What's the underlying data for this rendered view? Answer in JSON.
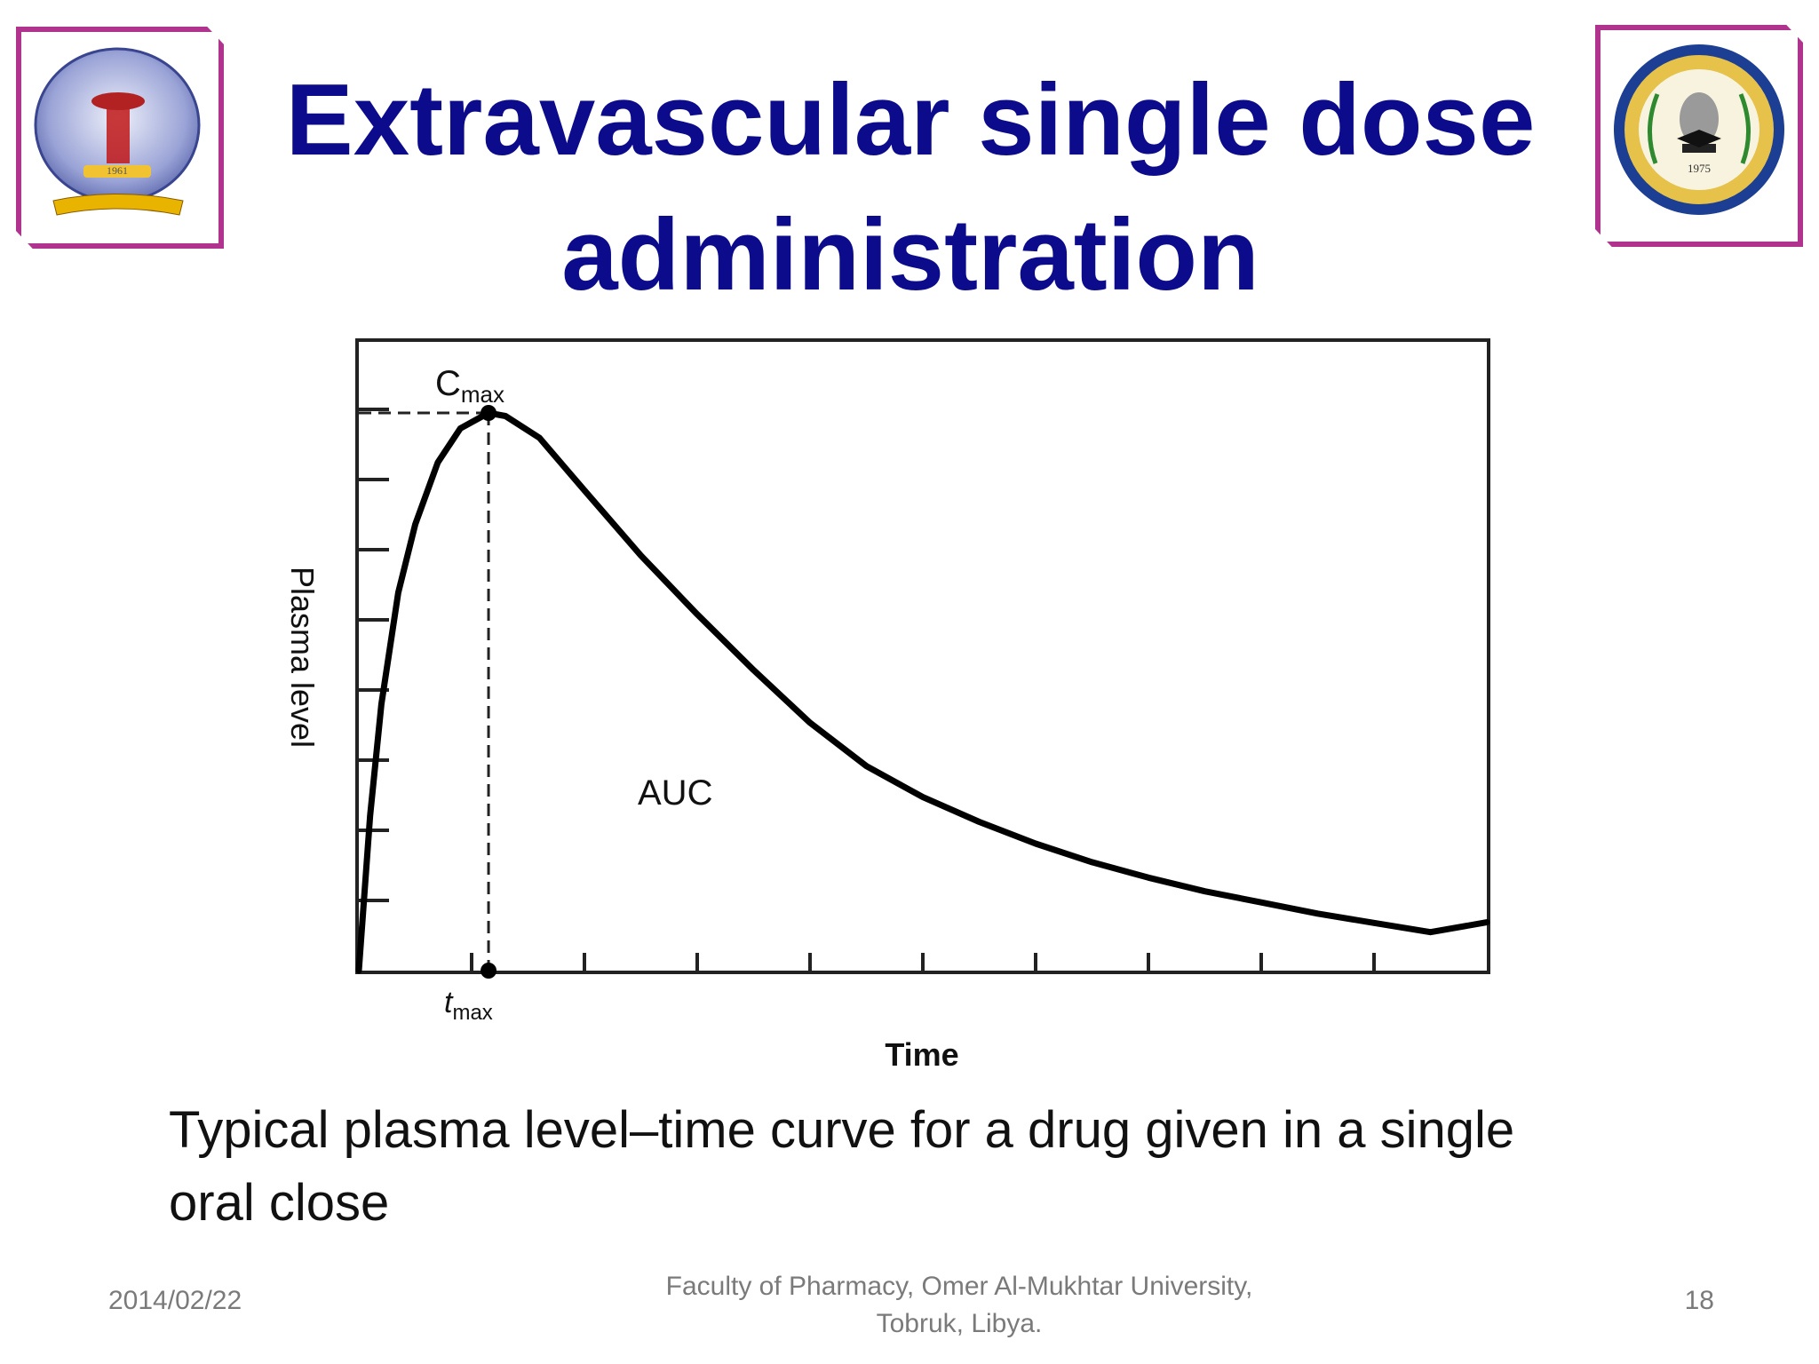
{
  "slide": {
    "title_line1": "Extravascular single dose",
    "title_line2": "administration",
    "caption_line1": "Typical plasma level–time curve for a drug given in a single",
    "caption_line2": "oral close"
  },
  "footer": {
    "date": "2014/02/22",
    "institution_line1": "Faculty of Pharmacy, Omer Al-Mukhtar University,",
    "institution_line2": "Tobruk, Libya.",
    "page_number": "18"
  },
  "logos": {
    "left": {
      "icon": "pharmacy-faculty-logo",
      "year": "1961"
    },
    "right": {
      "icon": "university-seal-logo",
      "year": "1975"
    }
  },
  "colors": {
    "title": "#0b0b8c",
    "logo_frame": "#b0348e",
    "footer_text": "#7a7a7a",
    "curve": "#000000"
  },
  "chart_data": {
    "type": "line",
    "xlabel": "Time",
    "ylabel": "Plasma level",
    "xlim": [
      0,
      10
    ],
    "ylim": [
      0,
      9
    ],
    "x_ticks": 9,
    "y_ticks": 8,
    "grid": false,
    "series": [
      {
        "x": [
          0,
          0.1,
          0.2,
          0.35,
          0.5,
          0.7,
          0.9,
          1.15,
          1.3,
          1.6,
          2.0,
          2.5,
          3.0,
          3.5,
          4.0,
          4.5,
          5.0,
          5.5,
          6.0,
          6.5,
          7.0,
          7.5,
          8.0,
          8.5,
          9.0,
          9.5,
          10.0
        ],
        "y": [
          0,
          2.5,
          4.3,
          6.1,
          7.2,
          8.2,
          8.75,
          9.0,
          8.95,
          8.6,
          7.75,
          6.7,
          5.75,
          4.85,
          4.0,
          3.3,
          2.8,
          2.4,
          2.05,
          1.75,
          1.5,
          1.28,
          1.1,
          0.92,
          0.77,
          0.62,
          0.78
        ]
      }
    ],
    "annotations": {
      "cmax_main": "C",
      "cmax_sub": "max",
      "tmax_main": "t",
      "tmax_sub": "max",
      "area_label": "AUC",
      "tmax_x": 1.15,
      "cmax_y": 9.0
    }
  }
}
